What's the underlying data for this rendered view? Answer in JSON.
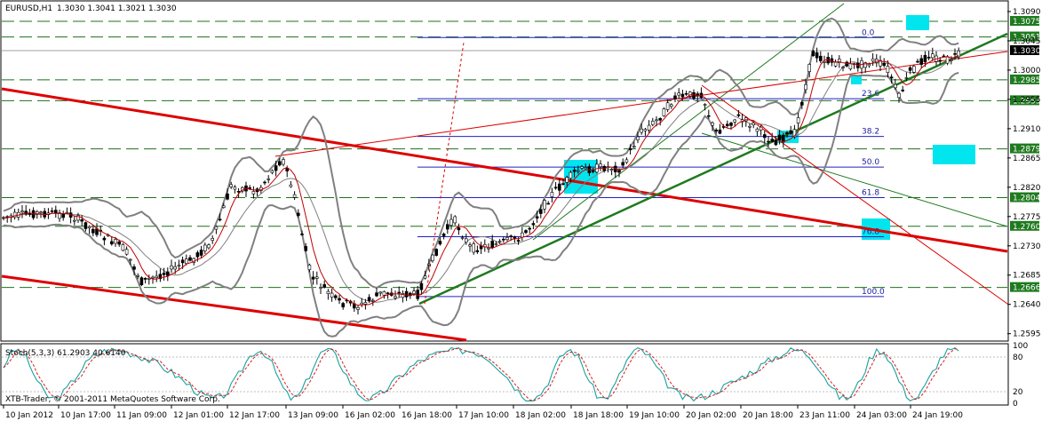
{
  "header": {
    "symbol": "EURUSD,H1",
    "ohlc": "1.3030 1.3041 1.3021 1.3030"
  },
  "copyright": "XTB-Trader, © 2001-2011 MetaQuotes Software Corp.",
  "colors": {
    "candle": "#000000",
    "bollinger": "#808080",
    "ma": "#c00000",
    "trend_red": "#dd0000",
    "trend_green": "#1f7a1f",
    "level_green": "#1f6f1f",
    "fib_blue": "#2020c0",
    "cyan": "#00e5ee",
    "stoch_main": "#1aa0a0",
    "stoch_signal": "#d02020"
  },
  "chart_data": {
    "type": "candlestick",
    "y_ticks": [
      "1.3090",
      "1.3045",
      "1.3000",
      "1.2955",
      "1.2910",
      "1.2865",
      "1.2820",
      "1.2775",
      "1.2730",
      "1.2685",
      "1.2640",
      "1.2595"
    ],
    "x_ticks": [
      "10 Jan 2012",
      "10 Jan 17:00",
      "11 Jan 09:00",
      "12 Jan 01:00",
      "12 Jan 17:00",
      "13 Jan 09:00",
      "16 Jan 02:00",
      "16 Jan 18:00",
      "17 Jan 10:00",
      "18 Jan 02:00",
      "18 Jan 18:00",
      "19 Jan 10:00",
      "20 Jan 02:00",
      "20 Jan 18:00",
      "23 Jan 11:00",
      "24 Jan 03:00",
      "24 Jan 19:00"
    ],
    "levels": [
      {
        "price": 1.3075,
        "label": "1.3075"
      },
      {
        "price": 1.3051,
        "label": "1.3051"
      },
      {
        "price": 1.2985,
        "label": "1.2985"
      },
      {
        "price": 1.2953,
        "label": "1.2953"
      },
      {
        "price": 1.2879,
        "label": "1.2879"
      },
      {
        "price": 1.2804,
        "label": "1.2804"
      },
      {
        "price": 1.276,
        "label": "1.2760"
      },
      {
        "price": 1.2666,
        "label": "1.2666"
      }
    ],
    "current_price": {
      "price": 1.303,
      "label": "1.3030"
    },
    "fibonacci": [
      {
        "level": "0.0",
        "price": 1.305
      },
      {
        "level": "23.6",
        "price": 1.2956
      },
      {
        "level": "38.2",
        "price": 1.2898
      },
      {
        "level": "50.0",
        "price": 1.2851
      },
      {
        "level": "61.8",
        "price": 1.2804
      },
      {
        "level": "76.8",
        "price": 1.2744
      },
      {
        "level": "100.0",
        "price": 1.2652
      }
    ],
    "ylim": [
      1.2585,
      1.3105
    ],
    "stochastic": {
      "label": "Stoch(5,3,3) 61.2903 40.6140",
      "levels": [
        "100",
        "80",
        "20",
        "0"
      ]
    }
  }
}
